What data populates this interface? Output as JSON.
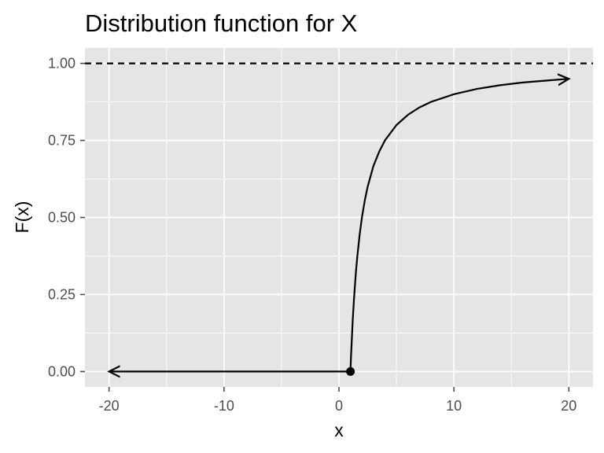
{
  "chart_data": {
    "type": "line",
    "title": "Distribution function for X",
    "xlabel": "x",
    "ylabel": "F(x)",
    "xlim": [
      -22.1,
      22.1
    ],
    "ylim": [
      -0.05,
      1.05
    ],
    "x_ticks": [
      -20,
      -10,
      0,
      10,
      20
    ],
    "x_tick_labels": [
      "-20",
      "-10",
      "0",
      "10",
      "20"
    ],
    "y_ticks": [
      0,
      0.25,
      0.5,
      0.75,
      1
    ],
    "y_tick_labels": [
      "0.00",
      "0.25",
      "0.50",
      "0.75",
      "1.00"
    ],
    "grid": true,
    "legend": "none",
    "series": [
      {
        "style": "solid",
        "marker_end": "arrow",
        "x": [
          1,
          -20
        ],
        "y": [
          0,
          0
        ]
      },
      {
        "style": "solid",
        "marker_end": "arrow",
        "x": [
          1,
          1.05,
          1.1,
          1.2,
          1.3,
          1.4,
          1.5,
          1.6,
          1.8,
          2,
          2.25,
          2.5,
          3,
          3.5,
          4,
          5,
          6,
          7,
          8,
          10,
          12,
          14,
          16,
          18,
          20
        ],
        "y": [
          0,
          0.048,
          0.091,
          0.167,
          0.231,
          0.286,
          0.333,
          0.375,
          0.444,
          0.5,
          0.556,
          0.6,
          0.667,
          0.714,
          0.75,
          0.8,
          0.833,
          0.857,
          0.875,
          0.9,
          0.917,
          0.929,
          0.938,
          0.944,
          0.95
        ]
      },
      {
        "style": "dashed",
        "x": [
          -22.1,
          22.1
        ],
        "y": [
          1,
          1
        ]
      }
    ],
    "points": [
      {
        "x": 1,
        "y": 0
      }
    ]
  },
  "colors": {
    "panel_background": "#e5e5e5",
    "grid": "#ffffff",
    "line": "#000000",
    "tick": "#4d4d4d"
  }
}
